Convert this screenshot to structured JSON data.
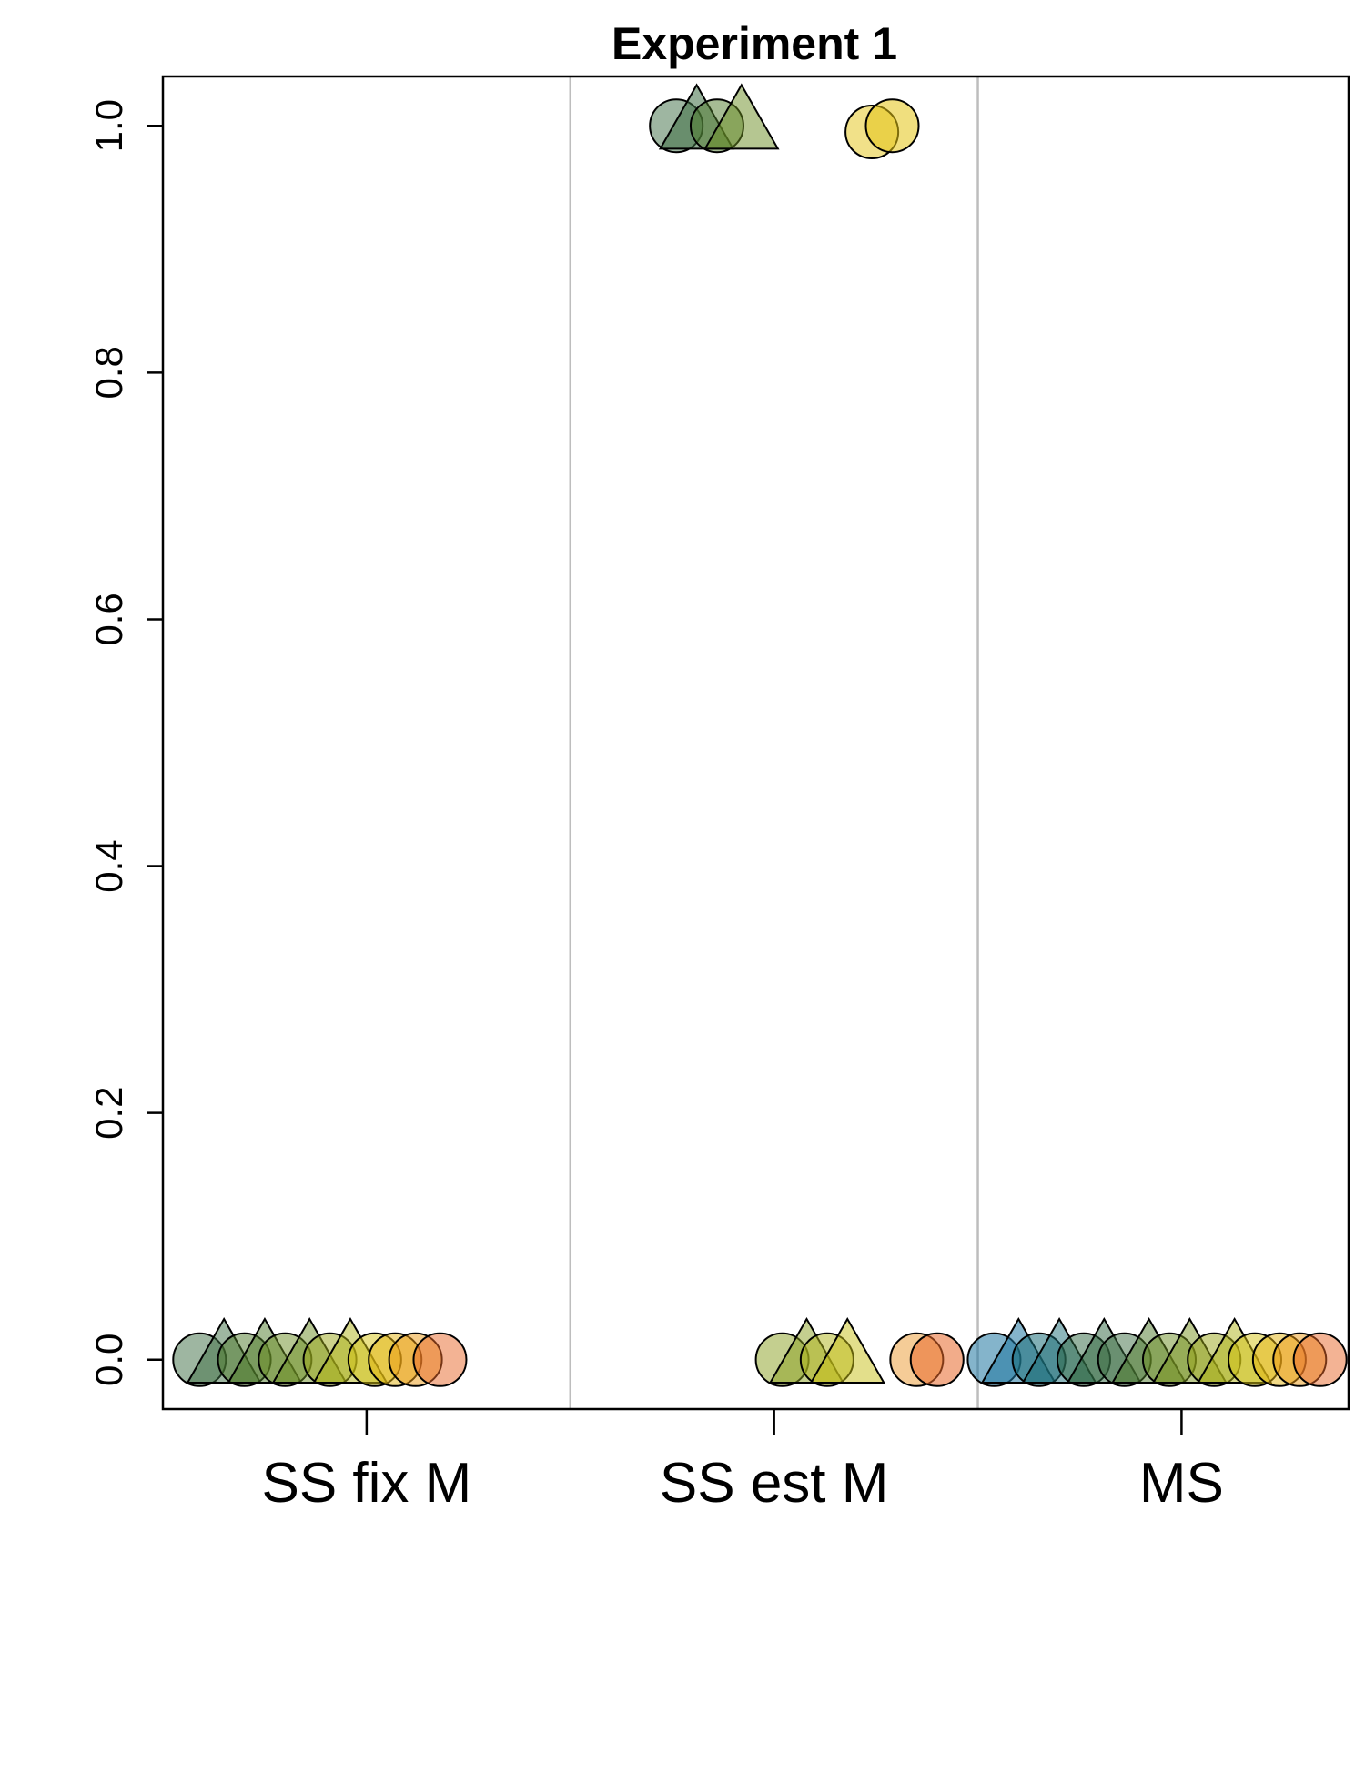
{
  "chart_data": {
    "type": "scatter",
    "title": "Experiment 1",
    "xlabel": "",
    "ylabel": "",
    "categories": [
      "SS fix M",
      "SS est M",
      "MS"
    ],
    "ylim": [
      -0.04,
      1.04
    ],
    "yticks": [
      0.0,
      0.2,
      0.4,
      0.6,
      0.8,
      1.0
    ],
    "ytick_labels": [
      "0.0",
      "0.2",
      "0.4",
      "0.6",
      "0.8",
      "1.0"
    ],
    "grid": false,
    "separators": [
      1.5,
      2.5
    ],
    "palette": [
      "#1f77a0",
      "#1b6e78",
      "#2e6540",
      "#4f7a2c",
      "#7a9420",
      "#b0b418",
      "#e3bc10",
      "#eb9a14",
      "#e8672a"
    ],
    "series": [
      {
        "category": "SS fix M",
        "points": [
          {
            "x": 0.59,
            "y": 0.0,
            "shape": "circle",
            "color": "#3e6e44",
            "alpha": 0.5
          },
          {
            "x": 0.65,
            "y": 0.0,
            "shape": "triangle",
            "color": "#3e6e44",
            "alpha": 0.5
          },
          {
            "x": 0.7,
            "y": 0.0,
            "shape": "circle",
            "color": "#4d7a2a",
            "alpha": 0.5
          },
          {
            "x": 0.75,
            "y": 0.0,
            "shape": "triangle",
            "color": "#4d7a2a",
            "alpha": 0.5
          },
          {
            "x": 0.8,
            "y": 0.0,
            "shape": "circle",
            "color": "#6b8e24",
            "alpha": 0.5
          },
          {
            "x": 0.86,
            "y": 0.0,
            "shape": "triangle",
            "color": "#6b8e24",
            "alpha": 0.5
          },
          {
            "x": 0.91,
            "y": 0.0,
            "shape": "circle",
            "color": "#9aa618",
            "alpha": 0.5
          },
          {
            "x": 0.96,
            "y": 0.0,
            "shape": "triangle",
            "color": "#b0b418",
            "alpha": 0.5
          },
          {
            "x": 1.02,
            "y": 0.0,
            "shape": "circle",
            "color": "#d6c414",
            "alpha": 0.5
          },
          {
            "x": 1.07,
            "y": 0.0,
            "shape": "circle",
            "color": "#e3b410",
            "alpha": 0.5
          },
          {
            "x": 1.12,
            "y": 0.0,
            "shape": "circle",
            "color": "#eb9a14",
            "alpha": 0.5
          },
          {
            "x": 1.18,
            "y": 0.0,
            "shape": "circle",
            "color": "#e8672a",
            "alpha": 0.5
          }
        ]
      },
      {
        "category": "SS est M",
        "points": [
          {
            "x": 1.76,
            "y": 1.0,
            "shape": "circle",
            "color": "#3e6e44",
            "alpha": 0.5
          },
          {
            "x": 1.81,
            "y": 1.0,
            "shape": "triangle",
            "color": "#3e6e44",
            "alpha": 0.55
          },
          {
            "x": 1.86,
            "y": 1.0,
            "shape": "circle",
            "color": "#4d7a2a",
            "alpha": 0.5
          },
          {
            "x": 1.92,
            "y": 1.0,
            "shape": "triangle",
            "color": "#6b8e24",
            "alpha": 0.5
          },
          {
            "x": 2.24,
            "y": 0.995,
            "shape": "circle",
            "color": "#e3c414",
            "alpha": 0.5
          },
          {
            "x": 2.29,
            "y": 1.0,
            "shape": "circle",
            "color": "#e3c414",
            "alpha": 0.55
          },
          {
            "x": 2.02,
            "y": 0.0,
            "shape": "circle",
            "color": "#8aa020",
            "alpha": 0.5
          },
          {
            "x": 2.08,
            "y": 0.0,
            "shape": "triangle",
            "color": "#8aa020",
            "alpha": 0.5
          },
          {
            "x": 2.13,
            "y": 0.0,
            "shape": "circle",
            "color": "#b0b418",
            "alpha": 0.5
          },
          {
            "x": 2.18,
            "y": 0.0,
            "shape": "triangle",
            "color": "#c8c018",
            "alpha": 0.5
          },
          {
            "x": 2.35,
            "y": 0.0,
            "shape": "circle",
            "color": "#eb9a30",
            "alpha": 0.5
          },
          {
            "x": 2.4,
            "y": 0.0,
            "shape": "circle",
            "color": "#e8672a",
            "alpha": 0.55
          }
        ]
      },
      {
        "category": "MS",
        "points": [
          {
            "x": 2.54,
            "y": 0.0,
            "shape": "circle",
            "color": "#1f77a0",
            "alpha": 0.55
          },
          {
            "x": 2.6,
            "y": 0.0,
            "shape": "triangle",
            "color": "#1f77a0",
            "alpha": 0.55
          },
          {
            "x": 2.65,
            "y": 0.0,
            "shape": "circle",
            "color": "#1b6e78",
            "alpha": 0.55
          },
          {
            "x": 2.7,
            "y": 0.0,
            "shape": "triangle",
            "color": "#1b6e78",
            "alpha": 0.5
          },
          {
            "x": 2.76,
            "y": 0.0,
            "shape": "circle",
            "color": "#2e6540",
            "alpha": 0.5
          },
          {
            "x": 2.81,
            "y": 0.0,
            "shape": "triangle",
            "color": "#2e6540",
            "alpha": 0.5
          },
          {
            "x": 2.86,
            "y": 0.0,
            "shape": "circle",
            "color": "#3e6e44",
            "alpha": 0.5
          },
          {
            "x": 2.92,
            "y": 0.0,
            "shape": "triangle",
            "color": "#4d7a2a",
            "alpha": 0.5
          },
          {
            "x": 2.97,
            "y": 0.0,
            "shape": "circle",
            "color": "#6b8e24",
            "alpha": 0.5
          },
          {
            "x": 3.02,
            "y": 0.0,
            "shape": "triangle",
            "color": "#7a9420",
            "alpha": 0.5
          },
          {
            "x": 3.08,
            "y": 0.0,
            "shape": "circle",
            "color": "#9aa618",
            "alpha": 0.5
          },
          {
            "x": 3.13,
            "y": 0.0,
            "shape": "triangle",
            "color": "#b0b418",
            "alpha": 0.5
          },
          {
            "x": 3.18,
            "y": 0.0,
            "shape": "circle",
            "color": "#d6c414",
            "alpha": 0.5
          },
          {
            "x": 3.24,
            "y": 0.0,
            "shape": "circle",
            "color": "#e3b410",
            "alpha": 0.5
          },
          {
            "x": 3.29,
            "y": 0.0,
            "shape": "circle",
            "color": "#eb9a14",
            "alpha": 0.5
          },
          {
            "x": 3.34,
            "y": 0.0,
            "shape": "circle",
            "color": "#e8672a",
            "alpha": 0.5
          }
        ]
      }
    ]
  }
}
